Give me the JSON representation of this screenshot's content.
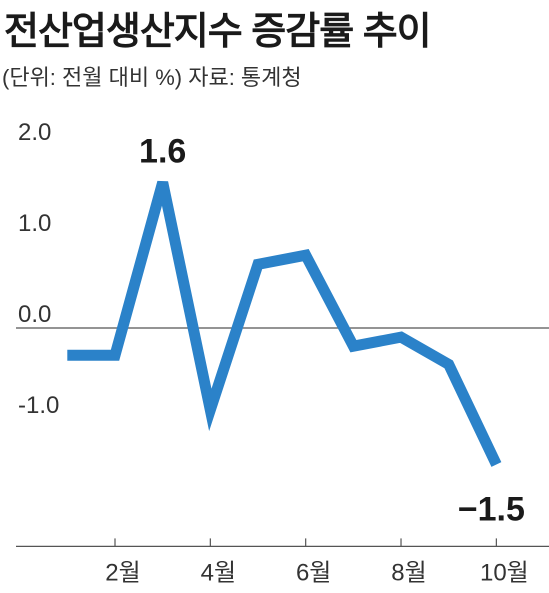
{
  "header": {
    "title": "전산업생산지수 증감률 추이",
    "subtitle": "(단위: 전월 대비 %) 자료: 통계청"
  },
  "chart_data": {
    "type": "line",
    "title": "전산업생산지수 증감률 추이",
    "subtitle": "(단위: 전월 대비 %) 자료: 통계청",
    "x": [
      1,
      2,
      3,
      4,
      5,
      6,
      7,
      8,
      9,
      10
    ],
    "x_tick_labels": [
      {
        "x": 2,
        "label": "2월"
      },
      {
        "x": 4,
        "label": "4월"
      },
      {
        "x": 6,
        "label": "6월"
      },
      {
        "x": 8,
        "label": "8월"
      },
      {
        "x": 10,
        "label": "10월"
      }
    ],
    "y_ticks": [
      {
        "value": 2.0,
        "label": "2.0"
      },
      {
        "value": 1.0,
        "label": "1.0"
      },
      {
        "value": 0.0,
        "label": "0.0"
      },
      {
        "value": -1.0,
        "label": "-1.0"
      }
    ],
    "series": [
      {
        "values": [
          -0.3,
          -0.3,
          1.6,
          -0.9,
          0.7,
          0.8,
          -0.2,
          -0.1,
          -0.4,
          -1.5
        ]
      }
    ],
    "annotations": [
      {
        "x": 3,
        "y": 1.6,
        "label": "1.6"
      },
      {
        "x": 10,
        "y": -1.5,
        "label": "−1.5"
      }
    ],
    "xlim": [
      0.5,
      11
    ],
    "ylim": [
      -2.4,
      2.0
    ],
    "zero_line": true,
    "line_color": "#2b82c9",
    "axis_color": "#555555"
  }
}
